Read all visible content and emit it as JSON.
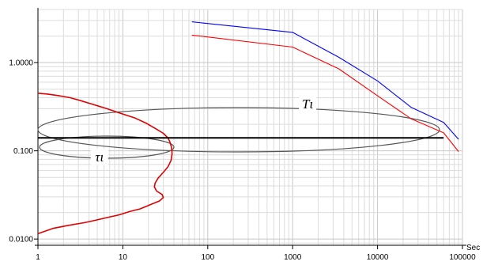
{
  "chart_data": {
    "type": "line",
    "x_scale": "log",
    "y_scale": "log",
    "xlim": [
      1,
      100000
    ],
    "ylim": [
      0.0085,
      4.0
    ],
    "grid": true,
    "xlabel": "",
    "ylabel": "",
    "x_unit_label": "Sec",
    "x_tick_labels": [
      "1",
      "10",
      "100",
      "1000",
      "10000",
      "100000"
    ],
    "x_tick_values": [
      1,
      10,
      100,
      1000,
      10000,
      100000
    ],
    "y_tick_labels": [
      "1.0000",
      "0.100",
      "0.0100"
    ],
    "y_tick_values": [
      1.0,
      0.1,
      0.01
    ],
    "series": [
      {
        "color": "#0000ff",
        "x": [
          65,
          1000,
          3500,
          10000,
          25000,
          60000,
          90000
        ],
        "y": [
          2.9,
          2.2,
          1.15,
          0.62,
          0.31,
          0.21,
          0.135
        ]
      },
      {
        "color": "#ff0000",
        "x": [
          65,
          1000,
          3500,
          10000,
          25000,
          60000,
          90000
        ],
        "y": [
          2.05,
          1.5,
          0.85,
          0.42,
          0.23,
          0.16,
          0.098
        ]
      },
      {
        "color": "#e00000",
        "x": [
          1.0,
          1.3,
          1.8,
          2.4,
          3.2,
          4.5,
          6.5,
          9.5,
          14,
          19,
          24,
          30,
          34,
          36,
          37.5,
          38,
          37,
          34,
          30,
          26,
          24,
          23.5,
          25,
          29,
          30,
          27,
          21,
          16,
          12,
          9,
          6.5,
          5,
          3.5,
          2.3,
          1.5,
          1.0
        ],
        "y": [
          0.45,
          0.44,
          0.42,
          0.4,
          0.37,
          0.335,
          0.3,
          0.265,
          0.235,
          0.205,
          0.18,
          0.158,
          0.14,
          0.125,
          0.108,
          0.093,
          0.078,
          0.066,
          0.057,
          0.049,
          0.043,
          0.039,
          0.035,
          0.032,
          0.0295,
          0.027,
          0.0245,
          0.022,
          0.0205,
          0.0188,
          0.0175,
          0.0165,
          0.0153,
          0.0143,
          0.0132,
          0.0115
        ]
      },
      {
        "color": "#000000",
        "x": [
          1,
          60000
        ],
        "y": [
          0.14,
          0.14
        ]
      }
    ],
    "annotations": [
      {
        "label": "Tι",
        "x": 1500,
        "y": 0.33
      },
      {
        "label": "τι",
        "x": 5.3,
        "y": 0.082
      }
    ]
  }
}
